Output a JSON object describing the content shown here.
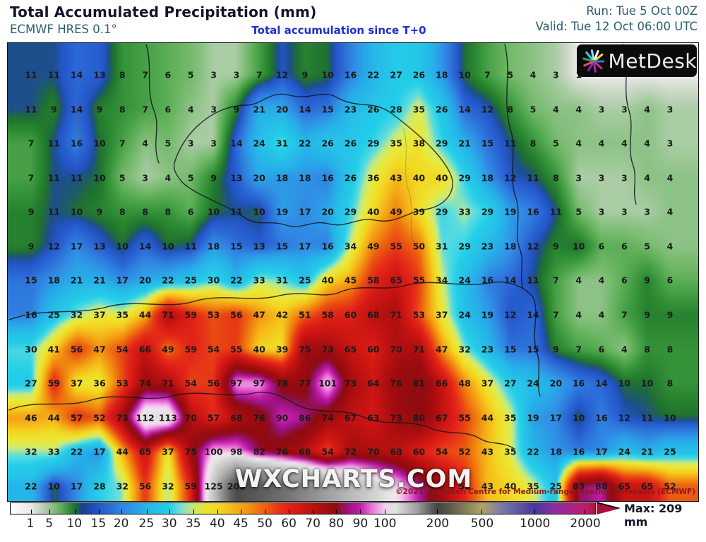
{
  "header": {
    "title": "Total Accumulated Precipitation (mm)",
    "model": "ECMWF HRES 0.1°",
    "subtitle": "Total accumulation since T+0",
    "run": "Run: Tue 5 Oct 00Z",
    "valid": "Valid: Tue 12 Oct 06:00 UTC"
  },
  "branding": {
    "logo_text": "MetDesk",
    "watermark": "WXCHARTS.COM",
    "copyright": "©2021 European Centre for Medium-range Weather Forecasts (ECMWF)"
  },
  "colorbar": {
    "max_label": "Max: 209 mm",
    "ticks": [
      {
        "label": "1",
        "pos": 3.5
      },
      {
        "label": "5",
        "pos": 6.7
      },
      {
        "label": "10",
        "pos": 11.0
      },
      {
        "label": "15",
        "pos": 15.1
      },
      {
        "label": "20",
        "pos": 19.0
      },
      {
        "label": "25",
        "pos": 23.3
      },
      {
        "label": "30",
        "pos": 27.2
      },
      {
        "label": "35",
        "pos": 31.3
      },
      {
        "label": "40",
        "pos": 35.4
      },
      {
        "label": "45",
        "pos": 39.4
      },
      {
        "label": "50",
        "pos": 43.5
      },
      {
        "label": "60",
        "pos": 47.6
      },
      {
        "label": "70",
        "pos": 51.7
      },
      {
        "label": "80",
        "pos": 55.7
      },
      {
        "label": "90",
        "pos": 59.8
      },
      {
        "label": "100",
        "pos": 64.0
      },
      {
        "label": "200",
        "pos": 73.0
      },
      {
        "label": "500",
        "pos": 80.6
      },
      {
        "label": "1000",
        "pos": 89.6
      },
      {
        "label": "2000",
        "pos": 98.2
      }
    ],
    "gradient": [
      {
        "p": 0,
        "c": "#ffffff"
      },
      {
        "p": 3.5,
        "c": "#e9e9e9"
      },
      {
        "p": 5.5,
        "c": "#bccdb6"
      },
      {
        "p": 6.7,
        "c": "#9cc495"
      },
      {
        "p": 8.8,
        "c": "#59ab55"
      },
      {
        "p": 11.0,
        "c": "#1f7030"
      },
      {
        "p": 12.3,
        "c": "#1a3f90"
      },
      {
        "p": 15.1,
        "c": "#2057c8"
      },
      {
        "p": 19.0,
        "c": "#2f85e2"
      },
      {
        "p": 23.3,
        "c": "#27b4e8"
      },
      {
        "p": 27.2,
        "c": "#1fd0e8"
      },
      {
        "p": 29.2,
        "c": "#7ce0d0"
      },
      {
        "p": 31.3,
        "c": "#c6e96a"
      },
      {
        "p": 33.3,
        "c": "#e8e234"
      },
      {
        "p": 35.4,
        "c": "#f2d822"
      },
      {
        "p": 39.4,
        "c": "#f5a414"
      },
      {
        "p": 43.5,
        "c": "#ee6210"
      },
      {
        "p": 45.5,
        "c": "#e73c16"
      },
      {
        "p": 47.6,
        "c": "#e32019"
      },
      {
        "p": 51.7,
        "c": "#bb1111"
      },
      {
        "p": 55.7,
        "c": "#8f0b10"
      },
      {
        "p": 57.8,
        "c": "#a01386"
      },
      {
        "p": 59.8,
        "c": "#c21ca6"
      },
      {
        "p": 61.9,
        "c": "#e97ad8"
      },
      {
        "p": 64.0,
        "c": "#f2cfee"
      },
      {
        "p": 65.8,
        "c": "#e3e3e3"
      },
      {
        "p": 69.5,
        "c": "#a0a0a0"
      },
      {
        "p": 73.0,
        "c": "#424242"
      },
      {
        "p": 75.0,
        "c": "#5d5949"
      },
      {
        "p": 80.6,
        "c": "#b0a266"
      },
      {
        "p": 84.0,
        "c": "#7a7aa8"
      },
      {
        "p": 89.6,
        "c": "#46399f"
      },
      {
        "p": 93.0,
        "c": "#8f2da0"
      },
      {
        "p": 98.2,
        "c": "#c01a70"
      },
      {
        "p": 100,
        "c": "#b3123f"
      }
    ],
    "arrow_color": "#a9113c"
  },
  "chart_data": {
    "type": "heatmap",
    "title": "Total Accumulated Precipitation (mm)",
    "units": "mm",
    "model": "ECMWF HRES 0.1°",
    "run": "Tue 5 Oct 00Z",
    "valid": "Tue 12 Oct 06:00 UTC",
    "max_value_mm": 209,
    "scale_values": [
      1,
      5,
      10,
      15,
      20,
      25,
      30,
      35,
      40,
      45,
      50,
      60,
      70,
      80,
      90,
      100,
      200,
      500,
      1000,
      2000
    ],
    "note": "grid of point precipitation values (mm); null = obscured by logo or watermark in source image",
    "values": [
      [
        11,
        11,
        14,
        13,
        8,
        7,
        6,
        5,
        3,
        3,
        7,
        12,
        9,
        10,
        16,
        22,
        27,
        26,
        18,
        10,
        7,
        5,
        4,
        3,
        1,
        null,
        null,
        null,
        null
      ],
      [
        11,
        9,
        14,
        9,
        8,
        7,
        6,
        4,
        3,
        9,
        21,
        20,
        14,
        15,
        23,
        26,
        28,
        35,
        26,
        14,
        12,
        8,
        5,
        4,
        4,
        3,
        3,
        4,
        3
      ],
      [
        7,
        11,
        16,
        10,
        7,
        4,
        5,
        3,
        3,
        14,
        24,
        31,
        22,
        26,
        26,
        29,
        35,
        38,
        29,
        21,
        15,
        11,
        8,
        5,
        4,
        4,
        4,
        4,
        3
      ],
      [
        7,
        11,
        11,
        10,
        5,
        3,
        4,
        5,
        9,
        13,
        20,
        18,
        18,
        16,
        26,
        36,
        43,
        40,
        40,
        29,
        18,
        12,
        11,
        8,
        3,
        3,
        3,
        4,
        4
      ],
      [
        9,
        11,
        10,
        9,
        8,
        8,
        8,
        6,
        10,
        11,
        10,
        19,
        17,
        20,
        29,
        40,
        49,
        39,
        29,
        33,
        29,
        19,
        16,
        11,
        5,
        3,
        3,
        3,
        4
      ],
      [
        9,
        12,
        17,
        13,
        10,
        14,
        10,
        11,
        18,
        15,
        13,
        15,
        17,
        16,
        34,
        49,
        55,
        50,
        31,
        29,
        23,
        18,
        12,
        9,
        10,
        6,
        6,
        5,
        4
      ],
      [
        15,
        18,
        21,
        21,
        17,
        20,
        22,
        25,
        30,
        22,
        33,
        31,
        25,
        40,
        45,
        58,
        65,
        55,
        34,
        24,
        16,
        14,
        11,
        7,
        4,
        4,
        6,
        9,
        6
      ],
      [
        16,
        25,
        32,
        37,
        35,
        44,
        71,
        59,
        53,
        56,
        47,
        42,
        51,
        58,
        60,
        68,
        71,
        53,
        37,
        24,
        19,
        12,
        14,
        7,
        4,
        4,
        7,
        9,
        9
      ],
      [
        30,
        41,
        56,
        47,
        54,
        66,
        49,
        59,
        54,
        55,
        40,
        39,
        75,
        73,
        65,
        60,
        70,
        71,
        47,
        32,
        23,
        15,
        15,
        9,
        7,
        6,
        4,
        8,
        8
      ],
      [
        27,
        59,
        37,
        36,
        53,
        74,
        71,
        54,
        56,
        97,
        97,
        78,
        77,
        101,
        73,
        64,
        76,
        81,
        66,
        48,
        37,
        27,
        24,
        20,
        16,
        14,
        10,
        10,
        8
      ],
      [
        46,
        44,
        57,
        52,
        73,
        112,
        113,
        70,
        57,
        68,
        76,
        90,
        86,
        74,
        67,
        63,
        73,
        80,
        67,
        55,
        44,
        35,
        19,
        17,
        10,
        16,
        12,
        11,
        10
      ],
      [
        32,
        33,
        22,
        17,
        44,
        65,
        37,
        75,
        100,
        98,
        82,
        76,
        68,
        54,
        72,
        70,
        68,
        60,
        54,
        52,
        43,
        35,
        22,
        18,
        16,
        17,
        24,
        21,
        25
      ],
      [
        22,
        10,
        17,
        28,
        32,
        56,
        32,
        59,
        125,
        205,
        null,
        null,
        null,
        null,
        null,
        null,
        null,
        null,
        null,
        58,
        43,
        40,
        35,
        25,
        83,
        88,
        65,
        65,
        52
      ]
    ],
    "colormap": [
      [
        0,
        "#ffffff"
      ],
      [
        1,
        "#ededed"
      ],
      [
        2,
        "#ccd8c7"
      ],
      [
        3,
        "#aacda5"
      ],
      [
        4,
        "#8cc285"
      ],
      [
        5,
        "#74b96c"
      ],
      [
        6,
        "#5cae56"
      ],
      [
        7,
        "#47a047"
      ],
      [
        8,
        "#349238"
      ],
      [
        9,
        "#27822f"
      ],
      [
        10,
        "#1f7030"
      ],
      [
        11,
        "#1d4f8c"
      ],
      [
        12,
        "#2355c8"
      ],
      [
        14,
        "#2b68d6"
      ],
      [
        16,
        "#2f80e0"
      ],
      [
        18,
        "#2f95e6"
      ],
      [
        20,
        "#28a9e8"
      ],
      [
        22,
        "#25b6e8"
      ],
      [
        25,
        "#27c2e8"
      ],
      [
        28,
        "#22cfe8"
      ],
      [
        31,
        "#5edde0"
      ],
      [
        33,
        "#bfe98a"
      ],
      [
        35,
        "#dcec52"
      ],
      [
        37,
        "#eee534"
      ],
      [
        40,
        "#f2d822"
      ],
      [
        43,
        "#f5bb1a"
      ],
      [
        46,
        "#f49d14"
      ],
      [
        49,
        "#f07d10"
      ],
      [
        52,
        "#ec5a10"
      ],
      [
        55,
        "#e73c16"
      ],
      [
        58,
        "#e32519"
      ],
      [
        62,
        "#d41a14"
      ],
      [
        66,
        "#c41312"
      ],
      [
        70,
        "#b00f10"
      ],
      [
        74,
        "#9d0c10"
      ],
      [
        80,
        "#8f0b10"
      ],
      [
        82,
        "#8e0e3c"
      ],
      [
        85,
        "#a01386"
      ],
      [
        88,
        "#c21ca6"
      ],
      [
        91,
        "#d944c4"
      ],
      [
        94,
        "#e97ad8"
      ],
      [
        97,
        "#f2a8e8"
      ],
      [
        100,
        "#f6d0f0"
      ],
      [
        103,
        "#f1e4ee"
      ],
      [
        107,
        "#e6e6e6"
      ],
      [
        115,
        "#d4d4d4"
      ],
      [
        130,
        "#bcbcbc"
      ],
      [
        150,
        "#9a9a9a"
      ],
      [
        175,
        "#6f6f6f"
      ],
      [
        205,
        "#4b4b4b"
      ],
      [
        250,
        "#5d5949"
      ],
      [
        350,
        "#958a5c"
      ],
      [
        500,
        "#b0a266"
      ],
      [
        650,
        "#8a8ab0"
      ],
      [
        1000,
        "#46399f"
      ],
      [
        1500,
        "#a52490"
      ],
      [
        2000,
        "#c01a70"
      ]
    ]
  }
}
